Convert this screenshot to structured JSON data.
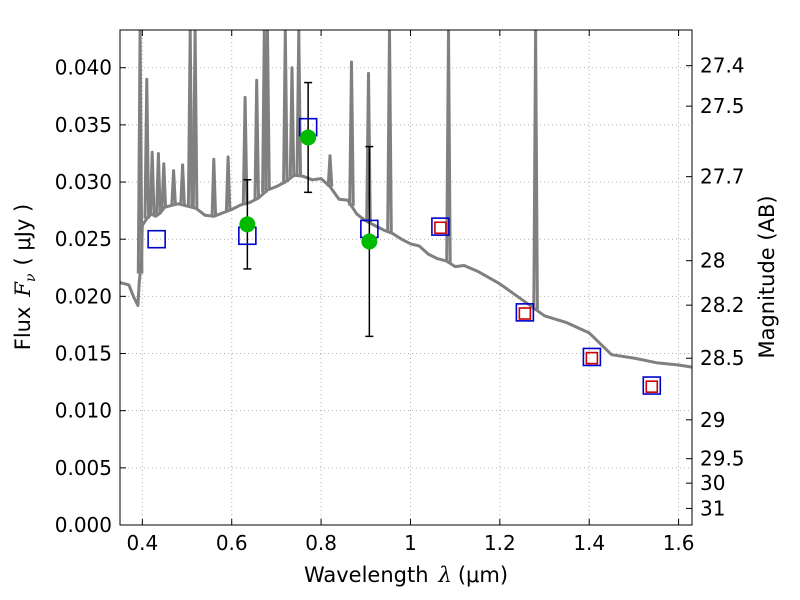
{
  "chart_data": {
    "type": "line",
    "xlabel": "Wavelength",
    "xlabel_symbol": "λ",
    "xlabel_unit": "(μm)",
    "ylabel": "Flux",
    "ylabel_symbol": "F",
    "ylabel_subscript": "ν",
    "ylabel_unit": "( μJy )",
    "y2label": "Magnitude (AB)",
    "xlim": [
      0.35,
      1.63
    ],
    "ylim": [
      0.0,
      0.0433
    ],
    "grid": true,
    "x_ticks": [
      0.4,
      0.6,
      0.8,
      1.0,
      1.2,
      1.4,
      1.6
    ],
    "x_tick_labels": [
      "0.4",
      "0.6",
      "0.8",
      "1",
      "1.2",
      "1.4",
      "1.6"
    ],
    "y_ticks": [
      0.0,
      0.005,
      0.01,
      0.015,
      0.02,
      0.025,
      0.03,
      0.035,
      0.04
    ],
    "y_tick_labels": [
      "0.000",
      "0.005",
      "0.010",
      "0.015",
      "0.020",
      "0.025",
      "0.030",
      "0.035",
      "0.040"
    ],
    "y2_ticks": [
      {
        "label": "27.4",
        "flux": 0.04018
      },
      {
        "label": "27.5",
        "flux": 0.03664
      },
      {
        "label": "27.7",
        "flux": 0.03047
      },
      {
        "label": "28",
        "flux": 0.02312
      },
      {
        "label": "28.2",
        "flux": 0.01923
      },
      {
        "label": "28.5",
        "flux": 0.01459
      },
      {
        "label": "29",
        "flux": 0.0092
      },
      {
        "label": "29.5",
        "flux": 0.0058
      },
      {
        "label": "30",
        "flux": 0.00366
      },
      {
        "label": "31",
        "flux": 0.00145
      }
    ],
    "colors": {
      "model": "#808080",
      "model_photometry": "#0000cc",
      "upper_points": "#cc0000",
      "observed": "#00bb00",
      "errorbar": "#000000",
      "grid": "#b0b0b0"
    },
    "model_spectrum": {
      "x": [
        0.35,
        0.37,
        0.38,
        0.39,
        0.393,
        0.398,
        0.4,
        0.41,
        0.42,
        0.43,
        0.44,
        0.45,
        0.46,
        0.47,
        0.48,
        0.5,
        0.52,
        0.54,
        0.56,
        0.58,
        0.6,
        0.62,
        0.64,
        0.66,
        0.68,
        0.7,
        0.72,
        0.74,
        0.76,
        0.78,
        0.8,
        0.82,
        0.84,
        0.86,
        0.88,
        0.9,
        0.92,
        0.94,
        0.96,
        0.98,
        1.0,
        1.02,
        1.04,
        1.06,
        1.08,
        1.1,
        1.12,
        1.15,
        1.2,
        1.25,
        1.3,
        1.35,
        1.4,
        1.45,
        1.5,
        1.55,
        1.6,
        1.63
      ],
      "y": [
        0.0212,
        0.021,
        0.02,
        0.0192,
        0.0212,
        0.0232,
        0.0262,
        0.0268,
        0.0272,
        0.027,
        0.0273,
        0.0278,
        0.0279,
        0.028,
        0.0281,
        0.0279,
        0.0277,
        0.0271,
        0.027,
        0.0273,
        0.0276,
        0.028,
        0.0282,
        0.0286,
        0.0293,
        0.0296,
        0.03,
        0.0306,
        0.0305,
        0.0302,
        0.0303,
        0.0296,
        0.0285,
        0.0284,
        0.0272,
        0.0266,
        0.0262,
        0.0258,
        0.0255,
        0.025,
        0.0246,
        0.0244,
        0.0237,
        0.0233,
        0.0231,
        0.0226,
        0.0227,
        0.0222,
        0.0211,
        0.0197,
        0.0183,
        0.0177,
        0.0168,
        0.0149,
        0.0146,
        0.0142,
        0.014,
        0.0138
      ]
    },
    "emission_lines": [
      {
        "x": 0.395,
        "peak": 0.0433
      },
      {
        "x": 0.41,
        "peak": 0.039
      },
      {
        "x": 0.422,
        "peak": 0.0326
      },
      {
        "x": 0.436,
        "peak": 0.0325
      },
      {
        "x": 0.448,
        "peak": 0.0316
      },
      {
        "x": 0.47,
        "peak": 0.031
      },
      {
        "x": 0.49,
        "peak": 0.0315
      },
      {
        "x": 0.507,
        "peak": 0.0433
      },
      {
        "x": 0.518,
        "peak": 0.0433
      },
      {
        "x": 0.56,
        "peak": 0.032
      },
      {
        "x": 0.592,
        "peak": 0.0322
      },
      {
        "x": 0.63,
        "peak": 0.0374
      },
      {
        "x": 0.656,
        "peak": 0.0389
      },
      {
        "x": 0.673,
        "peak": 0.0433
      },
      {
        "x": 0.68,
        "peak": 0.0433
      },
      {
        "x": 0.72,
        "peak": 0.0433
      },
      {
        "x": 0.735,
        "peak": 0.04
      },
      {
        "x": 0.75,
        "peak": 0.0433
      },
      {
        "x": 0.82,
        "peak": 0.0323
      },
      {
        "x": 0.868,
        "peak": 0.0405
      },
      {
        "x": 0.906,
        "peak": 0.0395
      },
      {
        "x": 0.953,
        "peak": 0.0433
      },
      {
        "x": 1.085,
        "peak": 0.0433
      },
      {
        "x": 1.28,
        "peak": 0.0433
      }
    ],
    "model_photometry": {
      "x": [
        0.432,
        0.635,
        0.771,
        0.908,
        1.067,
        1.256,
        1.406,
        1.54
      ],
      "y": [
        0.025,
        0.0253,
        0.0348,
        0.0259,
        0.0261,
        0.0186,
        0.0147,
        0.0122
      ]
    },
    "upper_points": {
      "x": [
        1.067,
        1.256,
        1.406,
        1.54
      ],
      "y": [
        0.026,
        0.0185,
        0.0146,
        0.0121
      ]
    },
    "observed": {
      "x": [
        0.635,
        0.771,
        0.908
      ],
      "y": [
        0.0263,
        0.0339,
        0.0248
      ],
      "yerr": [
        0.0039,
        0.0048,
        0.0083
      ]
    }
  }
}
